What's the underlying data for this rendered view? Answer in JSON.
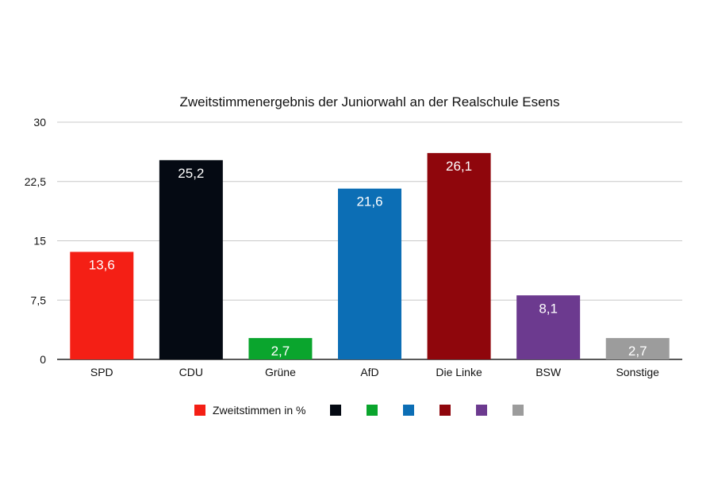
{
  "chart_data": {
    "type": "bar",
    "title": "Zweitstimmenergebnis der Juniorwahl an der Realschule Esens",
    "xlabel": "",
    "ylabel": "",
    "ylim": [
      0,
      30
    ],
    "yticks": [
      "0",
      "7,5",
      "15",
      "22,5",
      "30"
    ],
    "ytick_values": [
      0,
      7.5,
      15,
      22.5,
      30
    ],
    "grid": true,
    "legend_position": "bottom",
    "categories": [
      "SPD",
      "CDU",
      "Grüne",
      "AfD",
      "Die Linke",
      "BSW",
      "Sonstige"
    ],
    "series": [
      {
        "name": "Zweitstimmen in %",
        "values": [
          13.6,
          25.2,
          2.7,
          21.6,
          26.1,
          8.1,
          2.7
        ],
        "data_labels": [
          "13,6",
          "25,2",
          "2,7",
          "21,6",
          "26,1",
          "8,1",
          "2,7"
        ]
      }
    ],
    "colors": [
      "#f41f15",
      "#050a13",
      "#0aa52d",
      "#0c6eb5",
      "#8f060c",
      "#6c3a8f",
      "#9c9c9c"
    ],
    "legend": [
      {
        "label": "Zweitstimmen in %",
        "color": "#f41f15"
      },
      {
        "label": "",
        "color": "#050a13"
      },
      {
        "label": "",
        "color": "#0aa52d"
      },
      {
        "label": "",
        "color": "#0c6eb5"
      },
      {
        "label": "",
        "color": "#8f060c"
      },
      {
        "label": "",
        "color": "#6c3a8f"
      },
      {
        "label": "",
        "color": "#9c9c9c"
      }
    ]
  }
}
